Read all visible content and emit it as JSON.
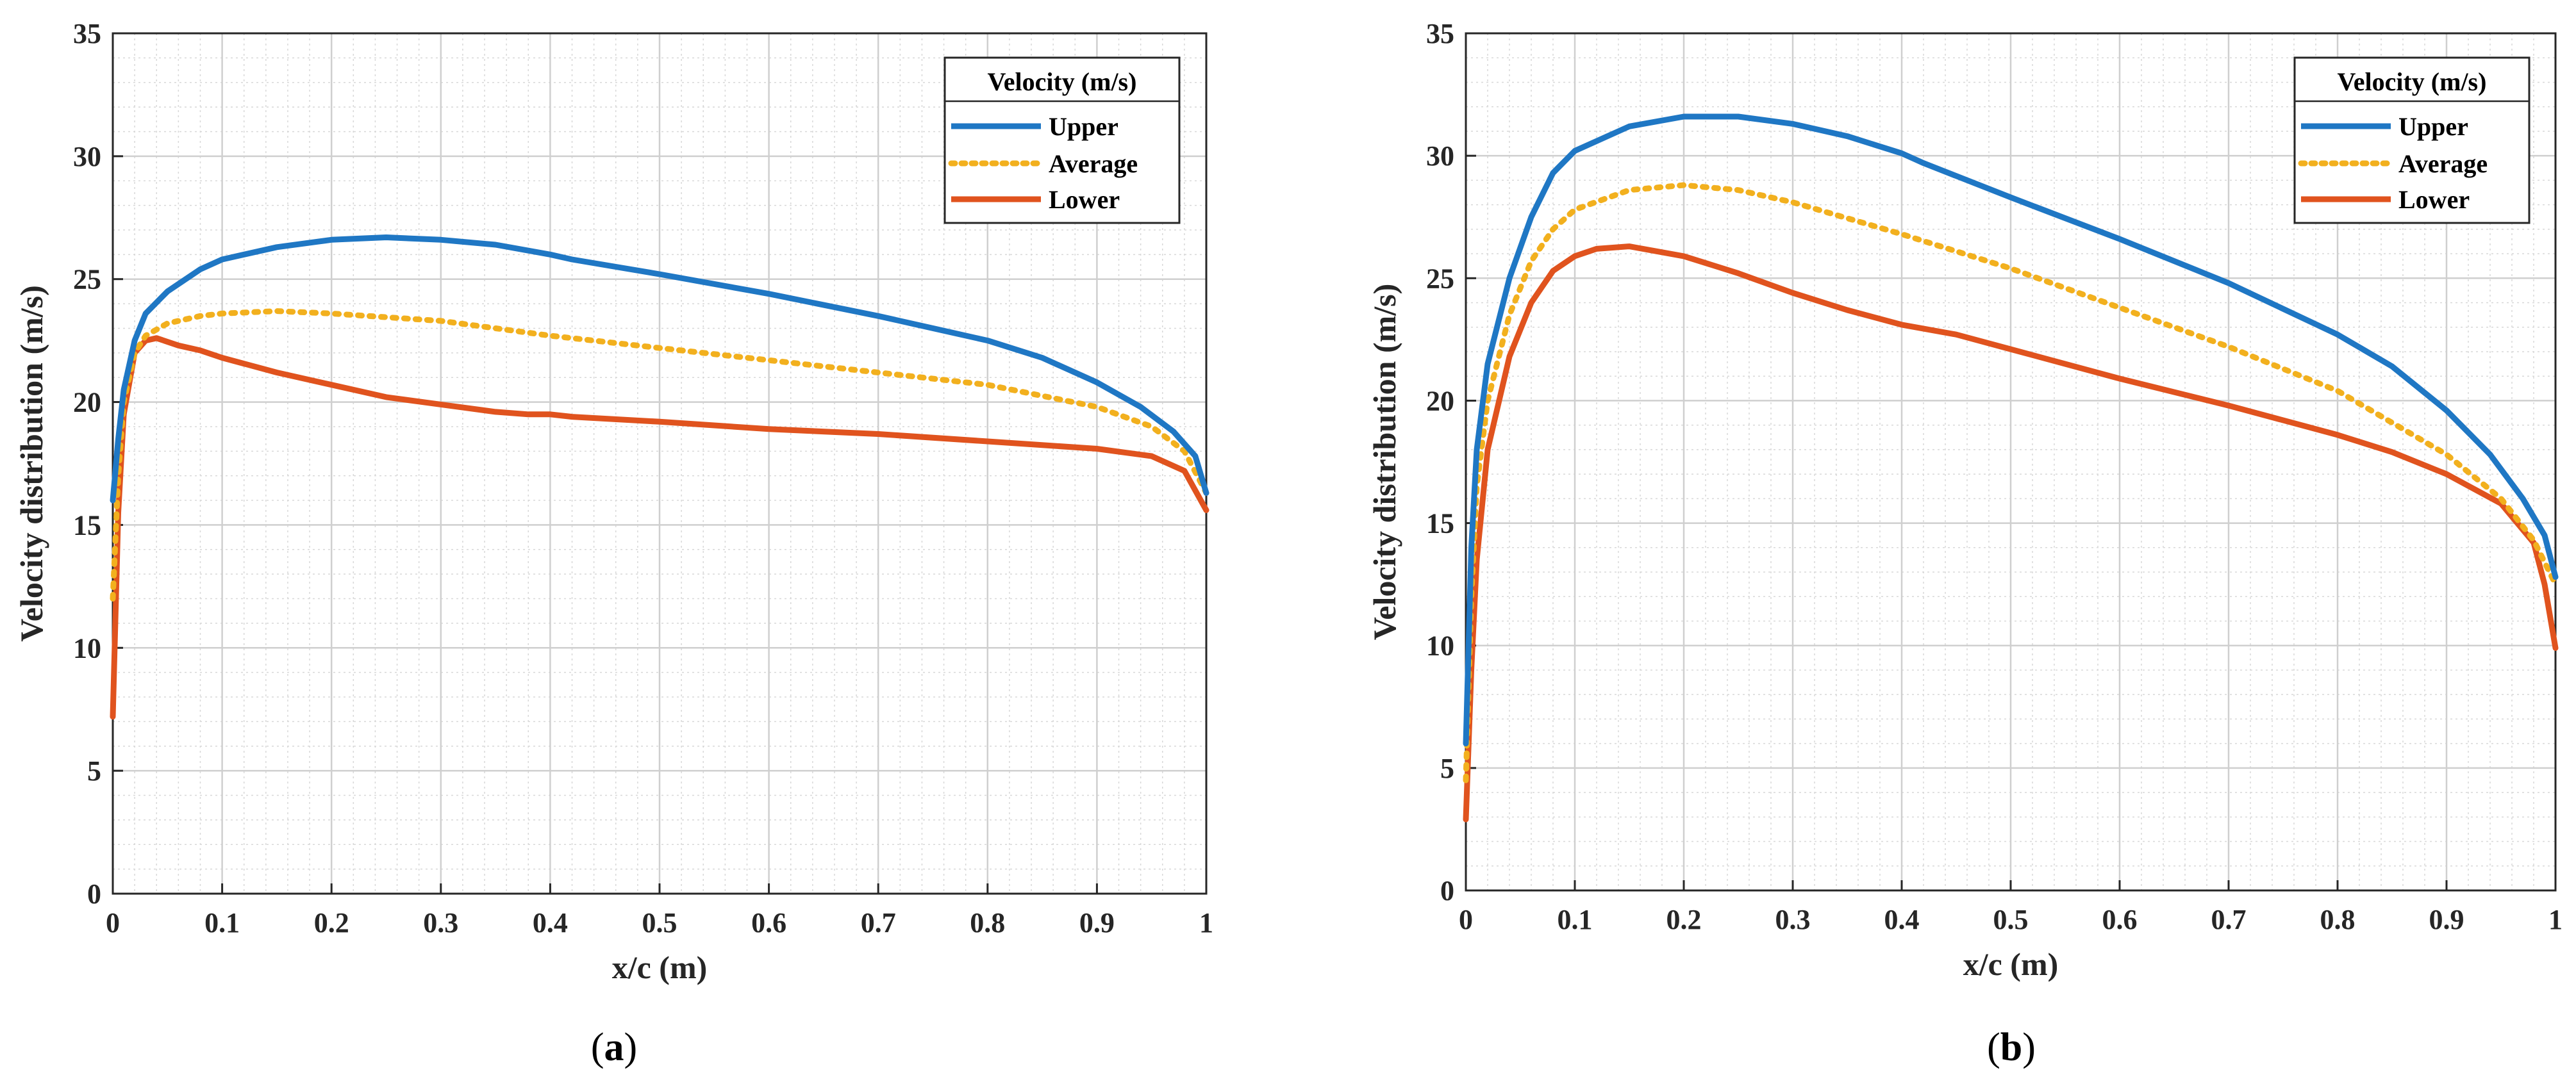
{
  "chart_data": [
    {
      "type": "line",
      "panel_label": "a",
      "xlabel": "x/c (m)",
      "ylabel": "Velocity distribution (m/s)",
      "xlim": [
        0,
        1
      ],
      "ylim": [
        0,
        35
      ],
      "xticks": [
        0,
        0.1,
        0.2,
        0.3,
        0.4,
        0.5,
        0.6,
        0.7,
        0.8,
        0.9,
        1
      ],
      "xtick_labels": [
        "0",
        "0.1",
        "0.2",
        "0.3",
        "0.4",
        "0.5",
        "0.6",
        "0.7",
        "0.8",
        "0.9",
        "1"
      ],
      "yticks": [
        0,
        5,
        10,
        15,
        20,
        25,
        30,
        35
      ],
      "ytick_labels": [
        "0",
        "5",
        "10",
        "15",
        "20",
        "25",
        "30",
        "35"
      ],
      "grid": true,
      "legend": {
        "title": "Velocity (m/s)",
        "position": "top-right"
      },
      "series": [
        {
          "name": "Upper",
          "color": "#1f77c4",
          "style": "solid",
          "x": [
            0,
            0.005,
            0.01,
            0.02,
            0.03,
            0.05,
            0.08,
            0.1,
            0.15,
            0.2,
            0.25,
            0.3,
            0.35,
            0.4,
            0.42,
            0.5,
            0.6,
            0.7,
            0.8,
            0.85,
            0.9,
            0.94,
            0.97,
            0.99,
            1.0
          ],
          "y": [
            16.0,
            18.5,
            20.5,
            22.5,
            23.6,
            24.5,
            25.4,
            25.8,
            26.3,
            26.6,
            26.7,
            26.6,
            26.4,
            26.0,
            25.8,
            25.2,
            24.4,
            23.5,
            22.5,
            21.8,
            20.8,
            19.8,
            18.8,
            17.8,
            16.3
          ]
        },
        {
          "name": "Average",
          "color": "#f2b01e",
          "style": "dotted",
          "x": [
            0,
            0.005,
            0.01,
            0.02,
            0.03,
            0.05,
            0.08,
            0.1,
            0.15,
            0.2,
            0.3,
            0.4,
            0.5,
            0.6,
            0.7,
            0.8,
            0.9,
            0.95,
            0.98,
            1.0
          ],
          "y": [
            12.0,
            17.0,
            20.0,
            22.0,
            22.7,
            23.2,
            23.5,
            23.6,
            23.7,
            23.6,
            23.3,
            22.7,
            22.2,
            21.7,
            21.2,
            20.7,
            19.8,
            19.0,
            18.0,
            16.3
          ]
        },
        {
          "name": "Lower",
          "color": "#e0531e",
          "style": "solid",
          "x": [
            0,
            0.005,
            0.01,
            0.02,
            0.03,
            0.04,
            0.06,
            0.08,
            0.1,
            0.15,
            0.2,
            0.25,
            0.3,
            0.35,
            0.38,
            0.4,
            0.42,
            0.5,
            0.6,
            0.7,
            0.8,
            0.9,
            0.95,
            0.98,
            1.0
          ],
          "y": [
            7.2,
            15.5,
            19.5,
            22.0,
            22.5,
            22.6,
            22.3,
            22.1,
            21.8,
            21.2,
            20.7,
            20.2,
            19.9,
            19.6,
            19.5,
            19.5,
            19.4,
            19.2,
            18.9,
            18.7,
            18.4,
            18.1,
            17.8,
            17.2,
            15.6
          ]
        }
      ]
    },
    {
      "type": "line",
      "panel_label": "b",
      "xlabel": "x/c (m)",
      "ylabel": "Velocity distribution (m/s)",
      "xlim": [
        0,
        1
      ],
      "ylim": [
        0,
        35
      ],
      "xticks": [
        0,
        0.1,
        0.2,
        0.3,
        0.4,
        0.5,
        0.6,
        0.7,
        0.8,
        0.9,
        1
      ],
      "xtick_labels": [
        "0",
        "0.1",
        "0.2",
        "0.3",
        "0.4",
        "0.5",
        "0.6",
        "0.7",
        "0.8",
        "0.9",
        "1"
      ],
      "yticks": [
        0,
        5,
        10,
        15,
        20,
        25,
        30,
        35
      ],
      "ytick_labels": [
        "0",
        "5",
        "10",
        "15",
        "20",
        "25",
        "30",
        "35"
      ],
      "grid": true,
      "legend": {
        "title": "Velocity (m/s)",
        "position": "top-right"
      },
      "series": [
        {
          "name": "Upper",
          "color": "#1f77c4",
          "style": "solid",
          "x": [
            0,
            0.005,
            0.01,
            0.02,
            0.04,
            0.06,
            0.08,
            0.1,
            0.15,
            0.2,
            0.25,
            0.3,
            0.35,
            0.4,
            0.42,
            0.5,
            0.6,
            0.7,
            0.8,
            0.85,
            0.9,
            0.94,
            0.97,
            0.99,
            1.0
          ],
          "y": [
            6.0,
            14.0,
            18.0,
            21.5,
            25.0,
            27.5,
            29.3,
            30.2,
            31.2,
            31.6,
            31.6,
            31.3,
            30.8,
            30.1,
            29.7,
            28.3,
            26.6,
            24.8,
            22.7,
            21.4,
            19.6,
            17.8,
            16.0,
            14.5,
            12.8
          ]
        },
        {
          "name": "Average",
          "color": "#f2b01e",
          "style": "dotted",
          "x": [
            0,
            0.005,
            0.01,
            0.02,
            0.04,
            0.06,
            0.08,
            0.1,
            0.15,
            0.2,
            0.25,
            0.3,
            0.4,
            0.5,
            0.6,
            0.7,
            0.8,
            0.9,
            0.95,
            0.98,
            1.0
          ],
          "y": [
            4.5,
            12.0,
            16.5,
            20.0,
            23.5,
            25.7,
            27.0,
            27.8,
            28.6,
            28.8,
            28.6,
            28.1,
            26.8,
            25.4,
            23.8,
            22.2,
            20.4,
            17.8,
            16.0,
            14.3,
            12.5
          ]
        },
        {
          "name": "Lower",
          "color": "#e0531e",
          "style": "solid",
          "x": [
            0,
            0.005,
            0.01,
            0.02,
            0.04,
            0.06,
            0.08,
            0.1,
            0.12,
            0.15,
            0.2,
            0.25,
            0.3,
            0.35,
            0.4,
            0.45,
            0.5,
            0.6,
            0.7,
            0.8,
            0.85,
            0.9,
            0.95,
            0.98,
            0.99,
            1.0
          ],
          "y": [
            2.9,
            9.0,
            13.5,
            18.0,
            21.8,
            24.0,
            25.3,
            25.9,
            26.2,
            26.3,
            25.9,
            25.2,
            24.4,
            23.7,
            23.1,
            22.7,
            22.1,
            20.9,
            19.8,
            18.6,
            17.9,
            17.0,
            15.8,
            14.2,
            12.5,
            9.9
          ]
        }
      ]
    }
  ],
  "captions": [
    {
      "open": "(",
      "label": "a",
      "close": ")"
    },
    {
      "open": "(",
      "label": "b",
      "close": ")"
    }
  ]
}
